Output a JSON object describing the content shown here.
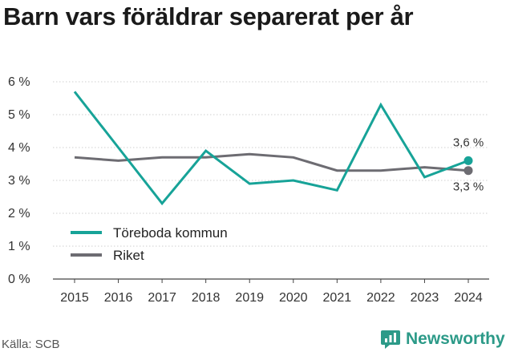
{
  "title": "Barn vars föräldrar separerat per år",
  "source": "Källa: SCB",
  "brand": {
    "name": "Newsworthy",
    "color": "#2c9a88"
  },
  "chart_data": {
    "type": "line",
    "title": "Barn vars föräldrar separerat per år",
    "xlabel": "",
    "ylabel": "",
    "x": [
      "2015",
      "2016",
      "2017",
      "2018",
      "2019",
      "2020",
      "2021",
      "2022",
      "2023",
      "2024"
    ],
    "ylim": [
      0,
      6
    ],
    "yticks": [
      0,
      1,
      2,
      3,
      4,
      5,
      6
    ],
    "ytick_labels": [
      "0 %",
      "1 %",
      "2 %",
      "3 %",
      "4 %",
      "5 %",
      "6 %"
    ],
    "grid": "horizontal",
    "legend": "bottom-left",
    "series": [
      {
        "name": "Töreboda kommun",
        "color": "#17a398",
        "values": [
          5.7,
          4.0,
          2.3,
          3.9,
          2.9,
          3.0,
          2.7,
          5.3,
          3.1,
          3.6
        ],
        "end_label": "3,6 %"
      },
      {
        "name": "Riket",
        "color": "#6d6c72",
        "values": [
          3.7,
          3.6,
          3.7,
          3.7,
          3.8,
          3.7,
          3.3,
          3.3,
          3.4,
          3.3
        ],
        "end_label": "3,3 %"
      }
    ]
  }
}
